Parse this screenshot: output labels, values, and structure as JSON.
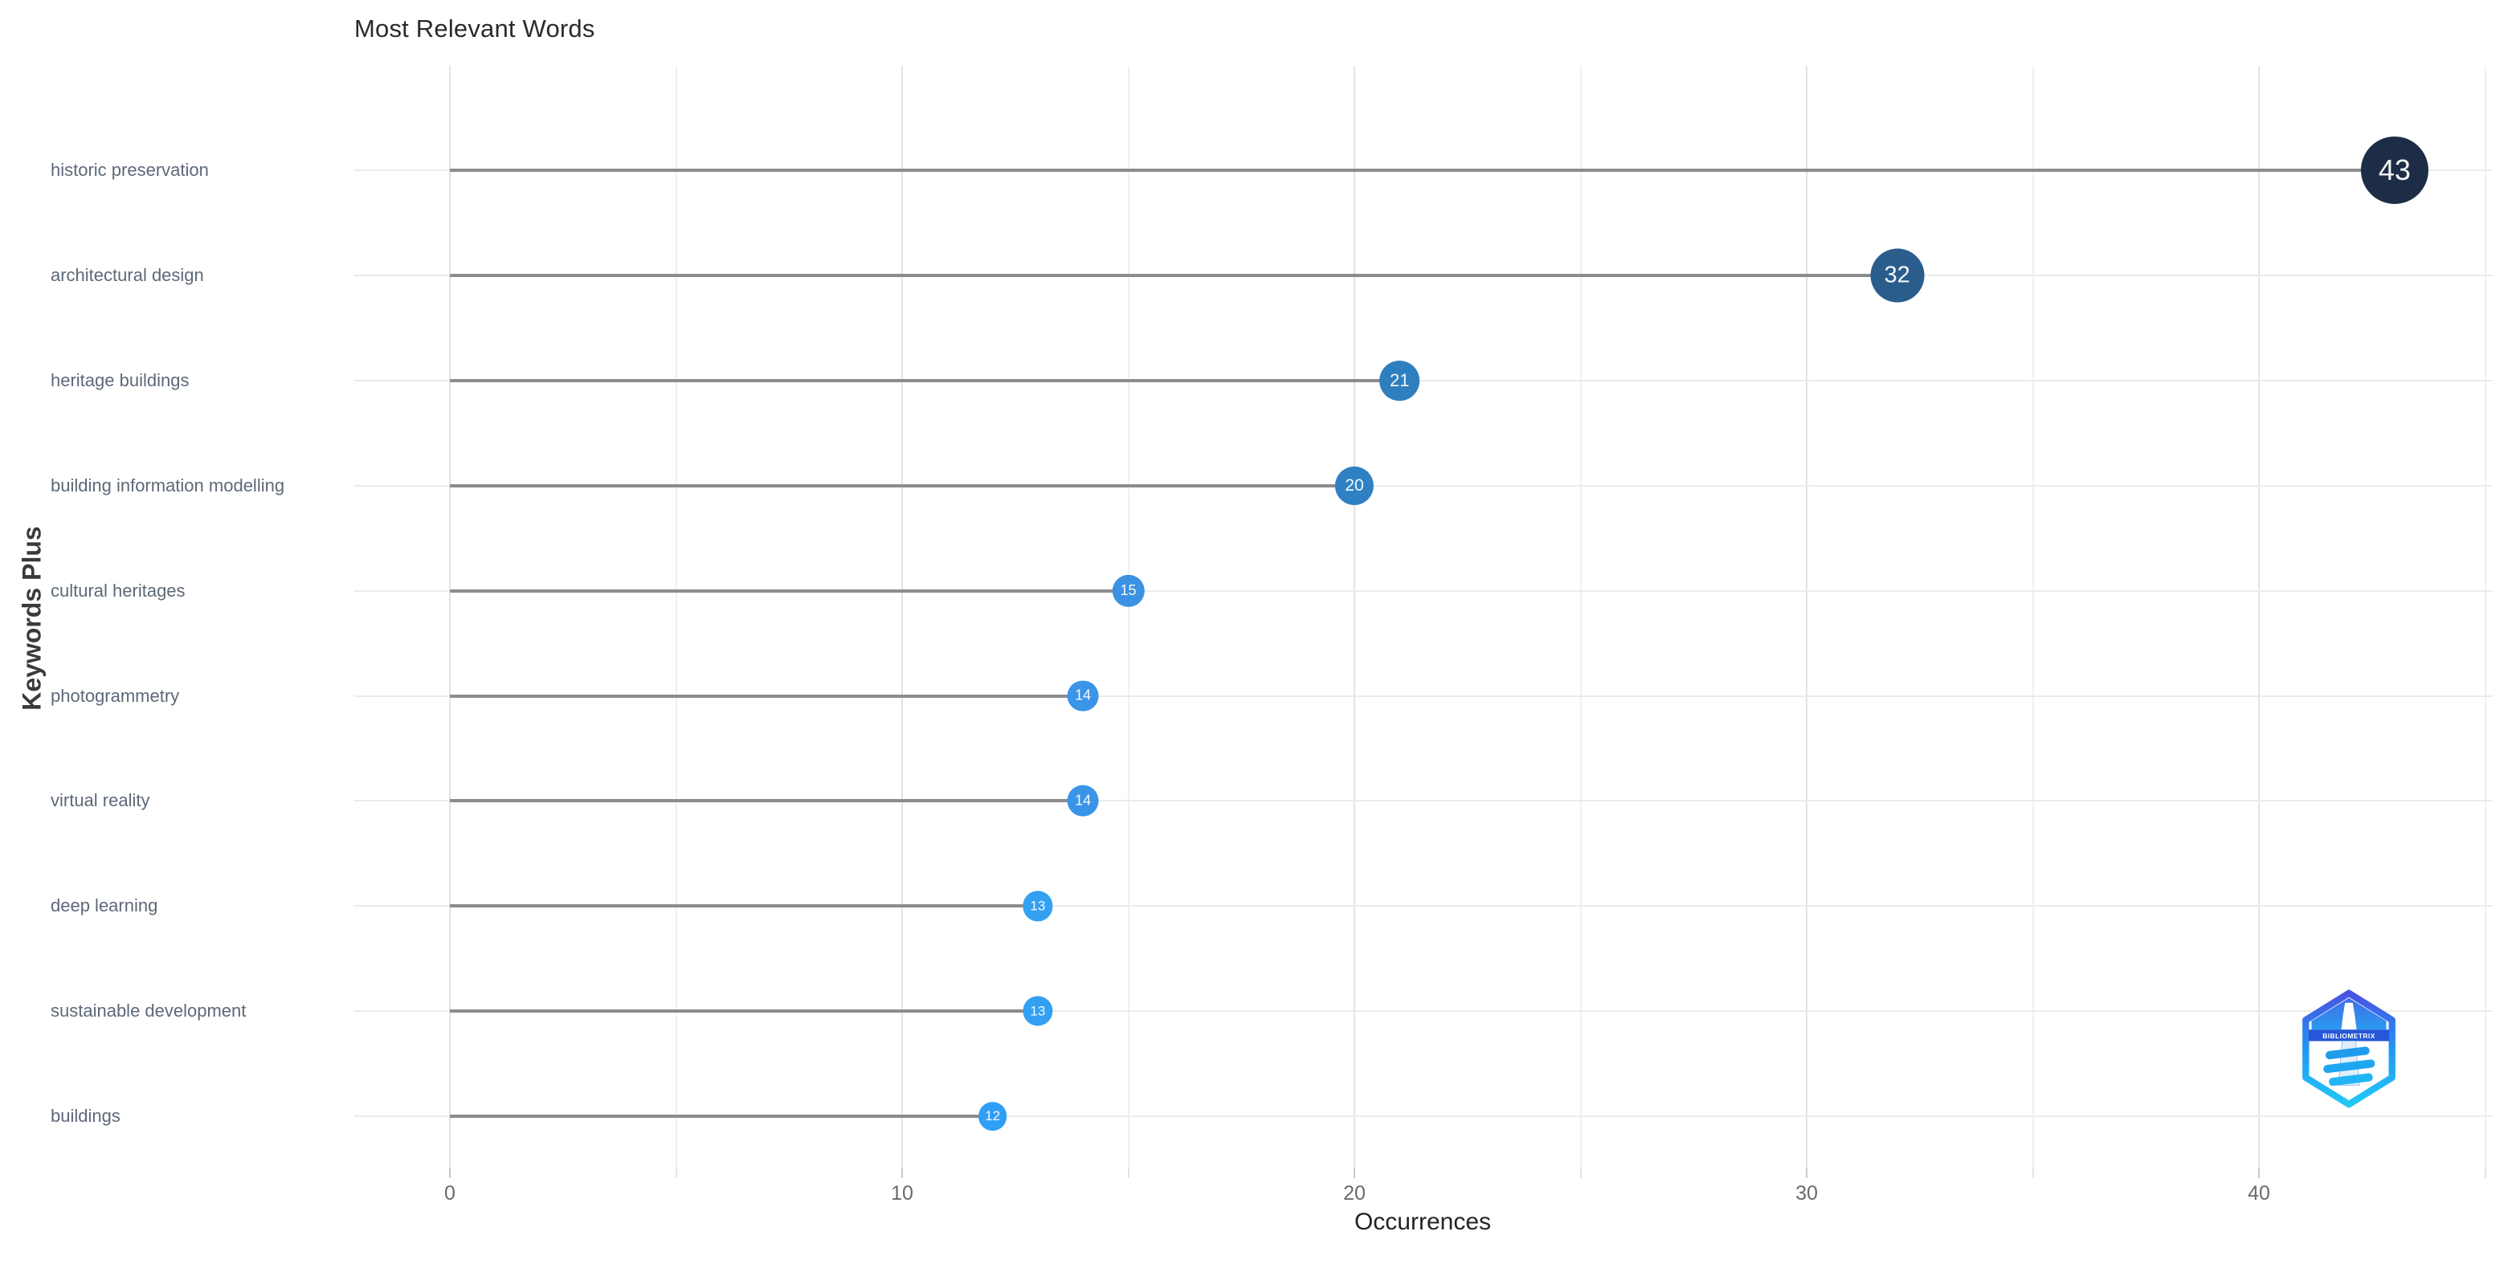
{
  "chart_data": {
    "type": "bar",
    "variant": "horizontal-lollipop",
    "title": "Most Relevant Words",
    "xlabel": "Occurrences",
    "ylabel": "Keywords Plus",
    "categories": [
      "historic preservation",
      "architectural design",
      "heritage buildings",
      "building information modelling",
      "cultural heritages",
      "photogrammetry",
      "virtual reality",
      "deep learning",
      "sustainable development",
      "buildings"
    ],
    "values": [
      43,
      32,
      21,
      20,
      15,
      14,
      14,
      13,
      13,
      12
    ],
    "point_colors": [
      "#1d2d45",
      "#2a5d8c",
      "#2e7fc0",
      "#2f81c3",
      "#3b92e2",
      "#3a94e8",
      "#3a94e8",
      "#33a0f2",
      "#33a0f2",
      "#2f9ff5"
    ],
    "xticks": [
      0,
      10,
      20,
      30,
      40
    ],
    "xticks_minor": [
      5,
      15,
      25,
      35,
      45
    ],
    "xlim": [
      -2.1,
      45.2
    ],
    "grid": "on",
    "legend": "none",
    "background": "#ffffff",
    "styles": {
      "stem_color": "#8c8c8c",
      "grid_major_color": "#e3e3e3",
      "grid_minor_color": "#f0f0f0",
      "row_grid_color": "#ebebeb",
      "category_label_color": "#5d6878",
      "tick_label_color": "#6a6a6a",
      "value_text_color": "#ffffff"
    }
  },
  "logo": {
    "text": "BIBLIOMETRIX"
  }
}
